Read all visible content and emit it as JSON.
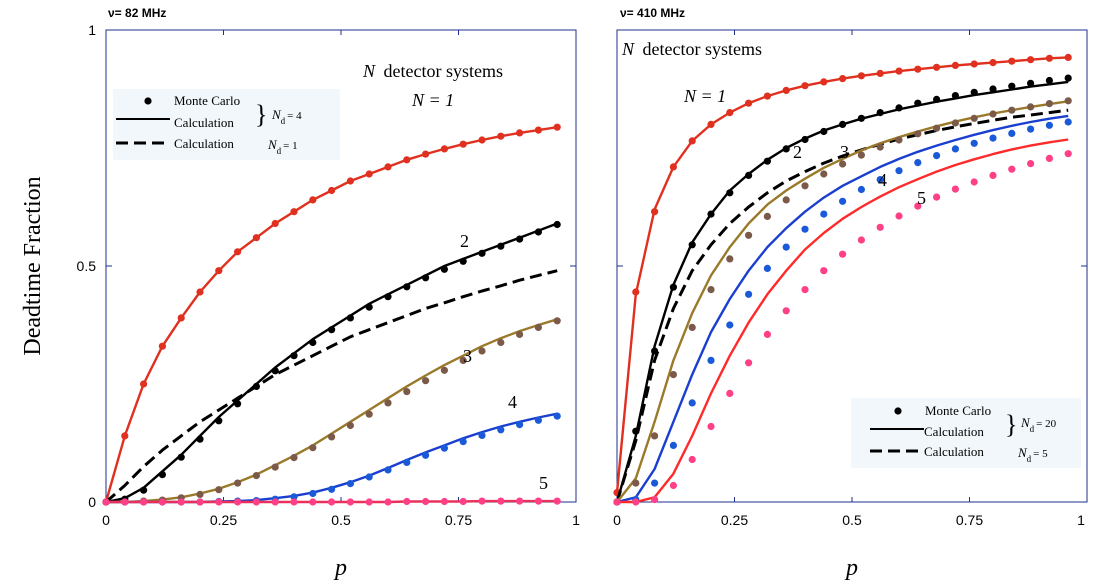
{
  "chart_data": [
    {
      "type": "line",
      "title": "ν= 82 MHz",
      "xlabel": "p",
      "ylabel": "Deadtime Fraction",
      "xlim": [
        0,
        1
      ],
      "ylim": [
        0,
        1
      ],
      "x_ticks": [
        "0",
        "0.25",
        "0.5",
        "0.75",
        "1"
      ],
      "y_ticks": [
        "0",
        "0.5",
        "1"
      ],
      "annotation": "N detector systems",
      "legend": {
        "placement": "top-left",
        "entries": [
          "Monte Carlo",
          "Calculation",
          "Calculation"
        ],
        "group_note_1": "N_d = 4",
        "group_note_2": "N_d = 1"
      },
      "x": [
        0,
        0.04,
        0.08,
        0.12,
        0.16,
        0.2,
        0.24,
        0.28,
        0.32,
        0.36,
        0.4,
        0.44,
        0.48,
        0.52,
        0.56,
        0.6,
        0.64,
        0.68,
        0.72,
        0.76,
        0.8,
        0.84,
        0.88,
        0.92,
        0.96
      ],
      "series": [
        {
          "label": "N = 1",
          "color": "#e03020",
          "mc_color": "#e03020",
          "values": [
            0,
            0.14,
            0.25,
            0.33,
            0.39,
            0.445,
            0.49,
            0.53,
            0.56,
            0.59,
            0.615,
            0.64,
            0.66,
            0.68,
            0.695,
            0.71,
            0.725,
            0.737,
            0.748,
            0.758,
            0.767,
            0.775,
            0.782,
            0.788,
            0.794
          ],
          "mc": [
            0,
            0.14,
            0.25,
            0.33,
            0.39,
            0.445,
            0.49,
            0.53,
            0.56,
            0.59,
            0.615,
            0.64,
            0.66,
            0.68,
            0.695,
            0.71,
            0.725,
            0.737,
            0.748,
            0.758,
            0.767,
            0.775,
            0.782,
            0.788,
            0.794
          ]
        },
        {
          "label": "2",
          "color": "#000000",
          "mc_color": "#000000",
          "values": [
            0,
            0.008,
            0.03,
            0.065,
            0.1,
            0.14,
            0.18,
            0.215,
            0.25,
            0.285,
            0.315,
            0.345,
            0.37,
            0.395,
            0.42,
            0.44,
            0.46,
            0.48,
            0.5,
            0.515,
            0.53,
            0.545,
            0.56,
            0.575,
            0.59
          ],
          "mc": [
            0,
            0.006,
            0.025,
            0.058,
            0.095,
            0.133,
            0.172,
            0.208,
            0.245,
            0.278,
            0.31,
            0.338,
            0.365,
            0.39,
            0.413,
            0.435,
            0.456,
            0.475,
            0.493,
            0.51,
            0.527,
            0.542,
            0.557,
            0.572,
            0.588
          ]
        },
        {
          "label": "Calculation N_d = 1",
          "color": "#000000",
          "dashed": true,
          "values": [
            0,
            0.035,
            0.075,
            0.11,
            0.14,
            0.17,
            0.195,
            0.22,
            0.245,
            0.27,
            0.29,
            0.31,
            0.33,
            0.35,
            0.365,
            0.38,
            0.395,
            0.41,
            0.422,
            0.435,
            0.447,
            0.458,
            0.47,
            0.48,
            0.49
          ]
        },
        {
          "label": "3",
          "color": "#9a7a2a",
          "mc_color": "#7b5a4a",
          "values": [
            0,
            0,
            0.002,
            0.005,
            0.01,
            0.018,
            0.028,
            0.042,
            0.058,
            0.078,
            0.098,
            0.12,
            0.145,
            0.17,
            0.195,
            0.22,
            0.245,
            0.268,
            0.29,
            0.31,
            0.33,
            0.347,
            0.362,
            0.375,
            0.387
          ],
          "mc": [
            0,
            0,
            0.002,
            0.004,
            0.009,
            0.016,
            0.026,
            0.04,
            0.056,
            0.074,
            0.094,
            0.115,
            0.138,
            0.162,
            0.186,
            0.21,
            0.234,
            0.257,
            0.279,
            0.3,
            0.32,
            0.338,
            0.355,
            0.37,
            0.384
          ]
        },
        {
          "label": "4",
          "color": "#1a3fd0",
          "mc_color": "#1a5ad8",
          "values": [
            0,
            0,
            0,
            0,
            0,
            0,
            0.001,
            0.002,
            0.004,
            0.008,
            0.013,
            0.02,
            0.03,
            0.042,
            0.056,
            0.072,
            0.089,
            0.105,
            0.12,
            0.135,
            0.148,
            0.16,
            0.17,
            0.179,
            0.187
          ],
          "mc": [
            0,
            0,
            0,
            0,
            0,
            0,
            0.001,
            0.002,
            0.003,
            0.006,
            0.011,
            0.018,
            0.027,
            0.039,
            0.053,
            0.068,
            0.084,
            0.099,
            0.114,
            0.128,
            0.141,
            0.153,
            0.164,
            0.173,
            0.182
          ]
        },
        {
          "label": "5",
          "color": "#e8305a",
          "mc_color": "#ff3f86",
          "values": [
            0,
            0,
            0,
            0,
            0,
            0,
            0,
            0,
            0,
            0,
            0,
            0,
            0,
            0,
            0,
            0,
            0.001,
            0.001,
            0.001,
            0.001,
            0.002,
            0.002,
            0.002,
            0.002,
            0.002
          ],
          "mc": [
            0,
            0,
            0,
            0,
            0,
            0,
            0,
            0,
            0,
            0,
            0,
            0,
            0,
            0,
            0,
            0,
            0.001,
            0.001,
            0.001,
            0.001,
            0.002,
            0.002,
            0.002,
            0.002,
            0.002
          ]
        }
      ]
    },
    {
      "type": "line",
      "title": "ν= 410 MHz",
      "xlabel": "p",
      "xlim": [
        0,
        1
      ],
      "ylim": [
        0,
        1
      ],
      "x_ticks": [
        "0",
        "0.25",
        "0.5",
        "0.75",
        "1"
      ],
      "annotation": "N detector systems",
      "legend": {
        "placement": "bottom-right",
        "entries": [
          "Monte Carlo",
          "Calculation",
          "Calculation"
        ],
        "group_note_1": "N_d = 20",
        "group_note_2": "N_d = 5"
      },
      "x": [
        0,
        0.04,
        0.08,
        0.12,
        0.16,
        0.2,
        0.24,
        0.28,
        0.32,
        0.36,
        0.4,
        0.44,
        0.48,
        0.52,
        0.56,
        0.6,
        0.64,
        0.68,
        0.72,
        0.76,
        0.8,
        0.84,
        0.88,
        0.92,
        0.96
      ],
      "series": [
        {
          "label": "N = 1",
          "color": "#e03020",
          "mc_color": "#e03020",
          "values": [
            0.02,
            0.44,
            0.62,
            0.71,
            0.765,
            0.8,
            0.825,
            0.845,
            0.86,
            0.872,
            0.882,
            0.89,
            0.897,
            0.903,
            0.908,
            0.913,
            0.917,
            0.921,
            0.925,
            0.928,
            0.931,
            0.934,
            0.937,
            0.94,
            0.942
          ],
          "mc": [
            0.02,
            0.445,
            0.615,
            0.71,
            0.765,
            0.8,
            0.825,
            0.845,
            0.86,
            0.872,
            0.882,
            0.89,
            0.897,
            0.903,
            0.908,
            0.913,
            0.917,
            0.921,
            0.925,
            0.928,
            0.931,
            0.934,
            0.937,
            0.94,
            0.942
          ]
        },
        {
          "label": "2",
          "color": "#000000",
          "mc_color": "#000000",
          "values": [
            0,
            0.14,
            0.33,
            0.46,
            0.55,
            0.61,
            0.66,
            0.695,
            0.725,
            0.75,
            0.77,
            0.787,
            0.8,
            0.812,
            0.822,
            0.832,
            0.84,
            0.848,
            0.855,
            0.862,
            0.868,
            0.874,
            0.88,
            0.885,
            0.89
          ],
          "mc": [
            0,
            0.15,
            0.32,
            0.455,
            0.545,
            0.61,
            0.655,
            0.692,
            0.722,
            0.748,
            0.768,
            0.785,
            0.8,
            0.813,
            0.825,
            0.835,
            0.845,
            0.853,
            0.861,
            0.868,
            0.875,
            0.881,
            0.887,
            0.893,
            0.898
          ]
        },
        {
          "label": "Calculation N_d = 5",
          "color": "#000000",
          "dashed": true,
          "values": [
            0,
            0.13,
            0.3,
            0.41,
            0.49,
            0.545,
            0.59,
            0.625,
            0.655,
            0.68,
            0.7,
            0.718,
            0.733,
            0.746,
            0.758,
            0.769,
            0.778,
            0.787,
            0.795,
            0.802,
            0.809,
            0.815,
            0.82,
            0.825,
            0.83
          ]
        },
        {
          "label": "3",
          "color": "#9a7a2a",
          "mc_color": "#7b5a4a",
          "values": [
            0,
            0.05,
            0.17,
            0.3,
            0.4,
            0.48,
            0.54,
            0.59,
            0.63,
            0.66,
            0.685,
            0.708,
            0.727,
            0.745,
            0.76,
            0.773,
            0.785,
            0.796,
            0.806,
            0.815,
            0.823,
            0.83,
            0.837,
            0.843,
            0.849
          ],
          "mc": [
            0,
            0.04,
            0.14,
            0.27,
            0.37,
            0.45,
            0.515,
            0.565,
            0.605,
            0.64,
            0.67,
            0.695,
            0.716,
            0.735,
            0.752,
            0.767,
            0.78,
            0.792,
            0.803,
            0.813,
            0.822,
            0.83,
            0.837,
            0.844,
            0.85
          ]
        },
        {
          "label": "4",
          "color": "#1a3fd0",
          "mc_color": "#1a5ad8",
          "values": [
            0,
            0.01,
            0.07,
            0.17,
            0.27,
            0.36,
            0.43,
            0.49,
            0.54,
            0.58,
            0.615,
            0.645,
            0.67,
            0.69,
            0.71,
            0.727,
            0.742,
            0.755,
            0.767,
            0.778,
            0.788,
            0.797,
            0.805,
            0.812,
            0.818
          ],
          "mc": [
            0,
            0.005,
            0.04,
            0.12,
            0.21,
            0.3,
            0.375,
            0.44,
            0.495,
            0.54,
            0.578,
            0.61,
            0.637,
            0.662,
            0.683,
            0.702,
            0.719,
            0.734,
            0.748,
            0.76,
            0.771,
            0.781,
            0.79,
            0.798,
            0.805
          ]
        },
        {
          "label": "5",
          "color": "#ff2a2a",
          "mc_color": "#ff3f86",
          "values": [
            0,
            0,
            0.01,
            0.06,
            0.14,
            0.23,
            0.31,
            0.38,
            0.44,
            0.49,
            0.535,
            0.57,
            0.6,
            0.625,
            0.647,
            0.667,
            0.684,
            0.7,
            0.714,
            0.726,
            0.737,
            0.747,
            0.755,
            0.762,
            0.768
          ],
          "mc": [
            0,
            0,
            0.005,
            0.035,
            0.09,
            0.16,
            0.23,
            0.295,
            0.355,
            0.405,
            0.45,
            0.49,
            0.525,
            0.555,
            0.582,
            0.606,
            0.627,
            0.646,
            0.663,
            0.678,
            0.692,
            0.705,
            0.717,
            0.728,
            0.738
          ]
        }
      ]
    }
  ],
  "labels_left": {
    "n1": "N = 1",
    "n2": "2",
    "n3": "3",
    "n4": "4",
    "n5": "5"
  },
  "labels_right": {
    "n1": "N = 1",
    "n2": "2",
    "n3": "3",
    "n4": "4",
    "n5": "5"
  },
  "nd_sub": "d",
  "nd_eq4": "= 4",
  "nd_eq1": "= 1",
  "nd_eq20": "= 20",
  "nd_eq5": "= 5",
  "ann_n": "N",
  "ann_rest": "detector systems",
  "xlabel_left": "p",
  "xlabel_right": "p"
}
